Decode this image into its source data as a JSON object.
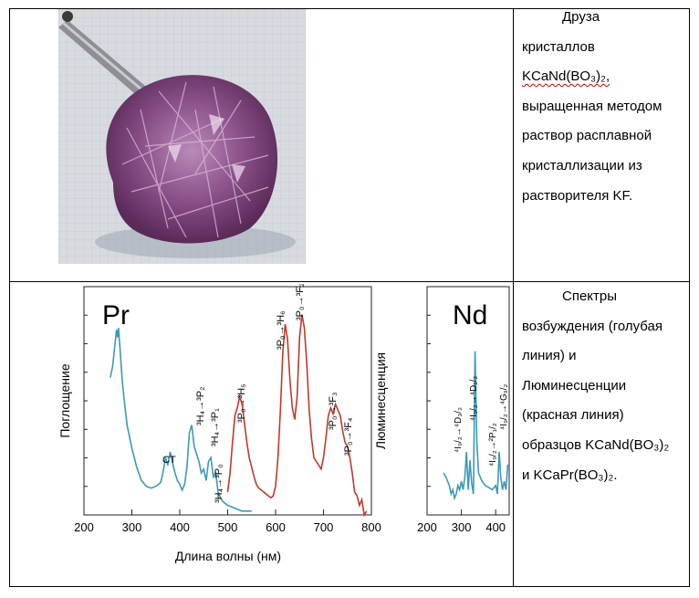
{
  "row1": {
    "photo_label": "crystal-druse-photo",
    "text_lines": [
      "Друза",
      "кристаллов",
      "KCaNd(BO₃)₂,",
      "выращенная методом",
      "раствор расплавной",
      "кристаллизации из",
      "растворителя KF."
    ]
  },
  "row2": {
    "text_lines": [
      "Спектры",
      "возбуждения (голубая",
      "линия) и",
      "Люминесценции",
      "(красная линия)",
      "образцов KCaNd(BO₃)₂",
      "и KCaPr(BO₃)₂."
    ]
  },
  "colors": {
    "excitation": "#3a9ab8",
    "luminescence": "#c0392b"
  },
  "chart_data": [
    {
      "type": "line",
      "title": "Pr",
      "xlabel": "Длина волны (нм)",
      "ylabel": "Поглощение",
      "xlim": [
        200,
        800
      ],
      "xticks": [
        "200",
        "300",
        "400",
        "500",
        "600",
        "700",
        "800"
      ],
      "series": [
        {
          "color": "#3a9ab8",
          "x": [
            255,
            260,
            265,
            268,
            270,
            272,
            275,
            280,
            285,
            290,
            300,
            310,
            320,
            330,
            340,
            350,
            360,
            365,
            370,
            375,
            380,
            385,
            390,
            395,
            400,
            405,
            410,
            415,
            420,
            425,
            430,
            435,
            440,
            445,
            450,
            455,
            460,
            465,
            470,
            475,
            480,
            485,
            490,
            495,
            500,
            510,
            520,
            530,
            540,
            550
          ],
          "y": [
            0.72,
            0.78,
            0.9,
            0.97,
            0.93,
            0.98,
            0.88,
            0.7,
            0.58,
            0.47,
            0.35,
            0.25,
            0.18,
            0.15,
            0.14,
            0.15,
            0.17,
            0.22,
            0.3,
            0.26,
            0.33,
            0.27,
            0.22,
            0.18,
            0.16,
            0.13,
            0.16,
            0.25,
            0.43,
            0.47,
            0.36,
            0.32,
            0.28,
            0.22,
            0.24,
            0.18,
            0.28,
            0.3,
            0.2,
            0.22,
            0.12,
            0.09,
            0.07,
            0.06,
            0.05,
            0.04,
            0.03,
            0.02,
            0.02,
            0.02
          ]
        },
        {
          "color": "#c0392b",
          "x": [
            500,
            505,
            510,
            515,
            520,
            525,
            530,
            535,
            540,
            545,
            550,
            555,
            560,
            565,
            570,
            575,
            580,
            585,
            590,
            595,
            600,
            605,
            610,
            615,
            620,
            625,
            630,
            635,
            640,
            645,
            650,
            655,
            660,
            665,
            670,
            675,
            680,
            685,
            690,
            695,
            700,
            705,
            710,
            715,
            720,
            725,
            730,
            735,
            740,
            745,
            750,
            755,
            760,
            765,
            770,
            775,
            780,
            785,
            790
          ],
          "y": [
            0.12,
            0.22,
            0.38,
            0.52,
            0.56,
            0.62,
            0.58,
            0.48,
            0.38,
            0.3,
            0.25,
            0.2,
            0.16,
            0.14,
            0.13,
            0.12,
            0.11,
            0.1,
            0.09,
            0.1,
            0.15,
            0.3,
            0.55,
            0.85,
            1.0,
            0.92,
            0.7,
            0.56,
            0.5,
            0.62,
            0.93,
            1.05,
            0.98,
            0.8,
            0.55,
            0.4,
            0.3,
            0.28,
            0.26,
            0.24,
            0.3,
            0.4,
            0.52,
            0.56,
            0.53,
            0.58,
            0.55,
            0.52,
            0.44,
            0.38,
            0.36,
            0.3,
            0.22,
            0.12,
            0.1,
            0.05,
            0.08,
            0.0,
            0.02
          ]
        }
      ],
      "annotations": [
        "CT",
        "³H₄→³P₂",
        "³H₄→³P₁",
        "³H₄→³P₀",
        "³P₀→³H₅",
        "³P₀→³H₆",
        "³P₀→³F₂",
        "³P₀→³F₃",
        "³P₀→³F₄"
      ]
    },
    {
      "type": "line",
      "title": "Nd",
      "xlabel": "",
      "ylabel": "Люминесценция",
      "xlim": [
        200,
        450
      ],
      "xticks": [
        "200",
        "300",
        "400"
      ],
      "series": [
        {
          "color": "#3a9ab8",
          "x": [
            248,
            255,
            260,
            265,
            270,
            275,
            280,
            285,
            290,
            295,
            300,
            305,
            310,
            315,
            320,
            325,
            330,
            335,
            340,
            345,
            350,
            360,
            370,
            380,
            390,
            400,
            405,
            410,
            415,
            420,
            425,
            430,
            435,
            440,
            445,
            450
          ],
          "y": [
            0.2,
            0.18,
            0.16,
            0.14,
            0.1,
            0.12,
            0.08,
            0.1,
            0.14,
            0.12,
            0.16,
            0.12,
            0.18,
            0.3,
            0.12,
            0.26,
            0.15,
            0.1,
            0.78,
            0.35,
            0.2,
            0.16,
            0.14,
            0.13,
            0.12,
            0.14,
            0.1,
            0.3,
            0.18,
            0.12,
            0.16,
            0.12,
            0.24,
            0.18,
            0.2,
            0.18
          ]
        }
      ],
      "annotations": [
        "⁴I₉/₂→⁴D₃/₂",
        "⁴I₉/₂→⁴D₁/₂",
        "⁴I₉/₂→²P₁/₂",
        "⁴I₉/₂→⁴G₉/₂"
      ]
    }
  ]
}
